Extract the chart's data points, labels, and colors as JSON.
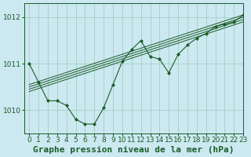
{
  "title": "Graphe pression niveau de la mer (hPa)",
  "bg_color": "#cce8f0",
  "grid_color": "#99ccbb",
  "line_color": "#1a5c28",
  "marker_color": "#1a5c28",
  "xlim": [
    -0.5,
    23
  ],
  "ylim": [
    1009.5,
    1012.3
  ],
  "yticks": [
    1010,
    1011,
    1012
  ],
  "xticks": [
    0,
    1,
    2,
    3,
    4,
    5,
    6,
    7,
    8,
    9,
    10,
    11,
    12,
    13,
    14,
    15,
    16,
    17,
    18,
    19,
    20,
    21,
    22,
    23
  ],
  "trend_lines": [
    [
      [
        0,
        23
      ],
      [
        1010.55,
        1012.05
      ]
    ],
    [
      [
        0,
        23
      ],
      [
        1010.5,
        1012.0
      ]
    ],
    [
      [
        0,
        23
      ],
      [
        1010.45,
        1011.95
      ]
    ],
    [
      [
        0,
        23
      ],
      [
        1010.4,
        1011.9
      ]
    ]
  ],
  "main_series_x": [
    0,
    1,
    2,
    3,
    4,
    5,
    6,
    7,
    8,
    9,
    10,
    11,
    12,
    13,
    14,
    15,
    16,
    17,
    18,
    19,
    20,
    21,
    22,
    23
  ],
  "main_series_y": [
    1011.0,
    1010.6,
    1010.2,
    1010.2,
    1010.1,
    1009.8,
    1009.7,
    1009.7,
    1010.05,
    1010.55,
    1011.05,
    1011.3,
    1011.5,
    1011.15,
    1011.1,
    1010.8,
    1011.2,
    1011.4,
    1011.55,
    1011.65,
    1011.8,
    1011.85,
    1011.9,
    1012.05
  ],
  "title_fontsize": 8,
  "tick_fontsize": 6.5
}
